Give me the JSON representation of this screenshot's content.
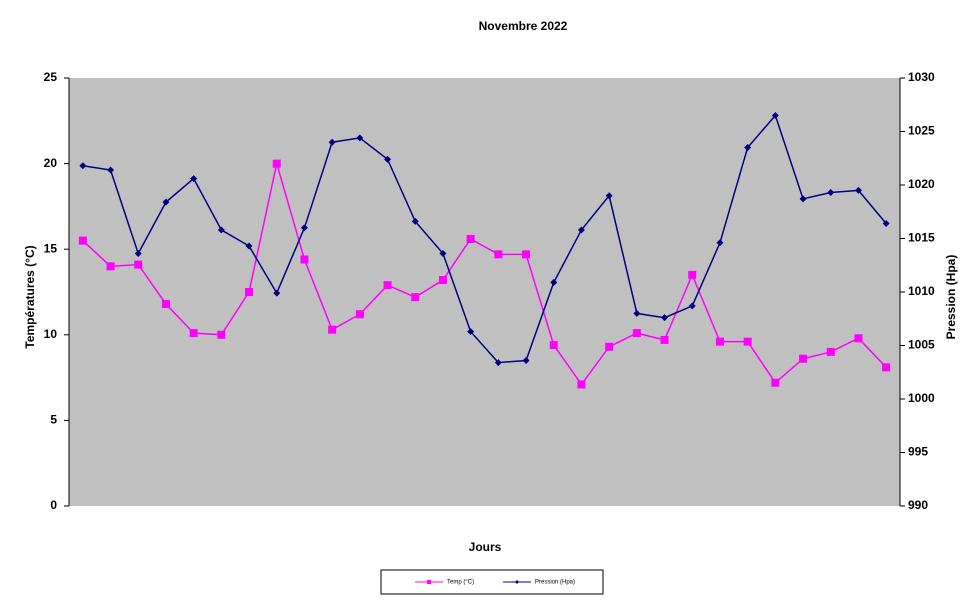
{
  "chart_data": {
    "type": "line",
    "title": "Novembre 2022",
    "x_label": "Jours",
    "y_label": "Températures (°C)",
    "y2_label": "Pression (Hpa)",
    "ylim": [
      0,
      25
    ],
    "yticks": [
      0,
      5,
      10,
      15,
      20,
      25
    ],
    "y2lim": [
      990,
      1030
    ],
    "y2ticks": [
      990,
      995,
      1000,
      1005,
      1010,
      1015,
      1020,
      1025,
      1030
    ],
    "background": "#c0c0c0",
    "legend": "bottom",
    "series": [
      {
        "name": "Temp (°C)",
        "color": "#ff00ff",
        "marker": "square",
        "values": [
          15.5,
          14.0,
          14.1,
          11.8,
          10.1,
          10.0,
          12.5,
          20.0,
          14.4,
          10.3,
          11.2,
          12.9,
          12.2,
          13.2,
          15.6,
          14.7,
          14.7,
          9.4,
          7.1,
          9.3,
          10.1,
          9.7,
          13.5,
          9.6,
          9.6,
          7.2,
          8.6,
          9.0,
          9.8,
          8.1
        ]
      },
      {
        "name": "Pression (Hpa)",
        "color": "#000080",
        "marker": "diamond",
        "axis": "y2",
        "values": [
          1021.8,
          1021.4,
          1013.6,
          1018.4,
          1020.6,
          1015.8,
          1014.3,
          1009.9,
          1016.0,
          1024.0,
          1024.4,
          1022.4,
          1016.6,
          1013.6,
          1006.3,
          1003.4,
          1003.6,
          1010.9,
          1015.8,
          1019.0,
          1008.0,
          1007.6,
          1008.7,
          1014.6,
          1023.5,
          1026.5,
          1018.7,
          1019.3,
          1019.5,
          1016.4
        ]
      }
    ]
  }
}
